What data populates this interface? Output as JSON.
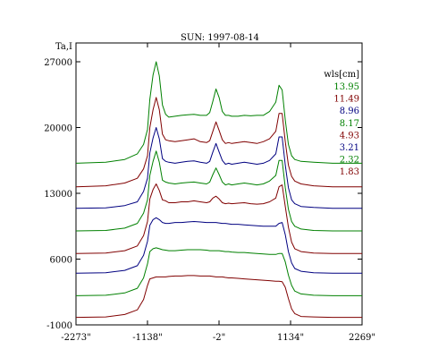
{
  "chart_data": {
    "type": "line",
    "title": "SUN: 1997-08-14",
    "ylabel": "Ta,I",
    "xlabel": "",
    "y_ticks": [
      "27000",
      "20000",
      "13000",
      "6000",
      "-1000"
    ],
    "y_tick_values": [
      27000,
      20000,
      13000,
      6000,
      -1000
    ],
    "x_ticks": [
      "-2273\"",
      "-1138\"",
      "-2\"",
      "1134\"",
      "2269\""
    ],
    "x_tick_values": [
      -2273,
      -1138,
      -2,
      1134,
      2269
    ],
    "xlim": [
      -2273,
      2269
    ],
    "ylim": [
      -1000,
      29000
    ],
    "legend_title": "wls[cm]",
    "legend_placement": "top-right",
    "colors": {
      "green": "#008000",
      "red": "#800000",
      "blue": "#000080"
    },
    "x": [
      -2273,
      -1800,
      -1500,
      -1300,
      -1200,
      -1138,
      -1100,
      -1050,
      -1000,
      -950,
      -900,
      -850,
      -800,
      -700,
      -600,
      -500,
      -400,
      -300,
      -200,
      -150,
      -100,
      -50,
      0,
      50,
      100,
      150,
      200,
      300,
      400,
      500,
      600,
      700,
      800,
      900,
      950,
      1000,
      1050,
      1100,
      1150,
      1200,
      1300,
      1500,
      1800,
      2269
    ],
    "series": [
      {
        "name": "13.95",
        "color": "#008000",
        "values": [
          16200,
          16300,
          16600,
          17200,
          18200,
          19800,
          23000,
          25600,
          27000,
          25500,
          22400,
          21400,
          21100,
          21200,
          21300,
          21350,
          21400,
          21300,
          21300,
          21600,
          22800,
          24100,
          23200,
          21700,
          21300,
          21300,
          21200,
          21200,
          21300,
          21250,
          21300,
          21300,
          21700,
          22700,
          24500,
          24000,
          20800,
          18200,
          17000,
          16600,
          16400,
          16300,
          16200,
          16200
        ]
      },
      {
        "name": "11.49",
        "color": "#800000",
        "values": [
          13700,
          13800,
          14100,
          14600,
          15600,
          17000,
          20000,
          21900,
          23200,
          21900,
          19300,
          18700,
          18600,
          18500,
          18600,
          18700,
          18800,
          18500,
          18400,
          18600,
          19600,
          20600,
          19700,
          18700,
          18300,
          18400,
          18300,
          18400,
          18500,
          18400,
          18300,
          18500,
          18800,
          19600,
          21500,
          21500,
          18500,
          16000,
          14800,
          14300,
          14000,
          13800,
          13700,
          13700
        ]
      },
      {
        "name": "8.96",
        "color": "#000080",
        "values": [
          11400,
          11450,
          11700,
          12100,
          13200,
          14600,
          17300,
          18900,
          20000,
          18800,
          16700,
          16400,
          16300,
          16200,
          16300,
          16400,
          16450,
          16300,
          16200,
          16400,
          17400,
          18300,
          17400,
          16500,
          16100,
          16200,
          16100,
          16200,
          16300,
          16200,
          16100,
          16200,
          16500,
          17200,
          19000,
          19000,
          16000,
          13600,
          12300,
          11900,
          11600,
          11500,
          11400,
          11400
        ]
      },
      {
        "name": "8.17",
        "color": "#008000",
        "values": [
          9000,
          9050,
          9300,
          9800,
          10900,
          12300,
          14900,
          16400,
          17500,
          16300,
          14400,
          14200,
          14100,
          14000,
          14100,
          14150,
          14200,
          14100,
          14000,
          14200,
          15000,
          15700,
          15000,
          14200,
          13900,
          14000,
          13900,
          14000,
          14100,
          14000,
          13900,
          14000,
          14300,
          14900,
          16500,
          16500,
          13600,
          11300,
          10000,
          9500,
          9200,
          9050,
          9000,
          9000
        ]
      },
      {
        "name": "4.93",
        "color": "#800000",
        "values": [
          6600,
          6650,
          6900,
          7400,
          8500,
          10000,
          12400,
          13400,
          14000,
          13300,
          12300,
          12200,
          12000,
          12000,
          12100,
          12100,
          12200,
          12100,
          12000,
          12100,
          12500,
          12700,
          12400,
          12000,
          11900,
          11950,
          11900,
          11950,
          12000,
          11900,
          11850,
          11900,
          12100,
          12500,
          13700,
          13900,
          11600,
          9400,
          7800,
          7100,
          6800,
          6650,
          6600,
          6600
        ]
      },
      {
        "name": "3.21",
        "color": "#000080",
        "values": [
          4500,
          4550,
          4800,
          5300,
          6400,
          7900,
          9600,
          10200,
          10400,
          10200,
          9900,
          9800,
          9800,
          9900,
          9900,
          9950,
          10000,
          9950,
          9900,
          9900,
          9900,
          9900,
          9850,
          9800,
          9800,
          9750,
          9700,
          9700,
          9650,
          9600,
          9550,
          9500,
          9500,
          9500,
          9800,
          9900,
          8600,
          6800,
          5600,
          5000,
          4700,
          4550,
          4500,
          4500
        ]
      },
      {
        "name": "2.32",
        "color": "#008000",
        "values": [
          2100,
          2150,
          2400,
          2900,
          4000,
          5500,
          6800,
          7100,
          7200,
          7100,
          7000,
          6950,
          6900,
          6900,
          6950,
          7000,
          7000,
          7000,
          6950,
          6900,
          6900,
          6900,
          6900,
          6850,
          6800,
          6800,
          6750,
          6700,
          6700,
          6650,
          6600,
          6550,
          6500,
          6500,
          6600,
          6600,
          5700,
          4300,
          3200,
          2600,
          2300,
          2150,
          2100,
          2100
        ]
      },
      {
        "name": "1.83",
        "color": "#800000",
        "values": [
          -200,
          -150,
          100,
          600,
          1700,
          3200,
          3900,
          4000,
          4100,
          4100,
          4100,
          4100,
          4150,
          4200,
          4200,
          4250,
          4250,
          4200,
          4200,
          4200,
          4150,
          4100,
          4100,
          4100,
          4050,
          4000,
          4000,
          3950,
          3900,
          3850,
          3800,
          3750,
          3700,
          3650,
          3650,
          3600,
          3000,
          1800,
          700,
          200,
          -100,
          -150,
          -200,
          -200
        ]
      }
    ]
  }
}
